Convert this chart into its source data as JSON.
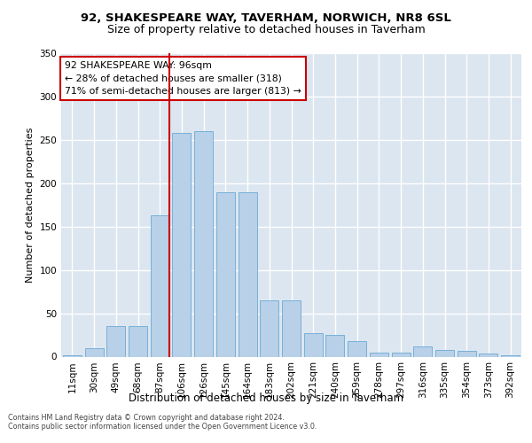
{
  "title1": "92, SHAKESPEARE WAY, TAVERHAM, NORWICH, NR8 6SL",
  "title2": "Size of property relative to detached houses in Taverham",
  "xlabel": "Distribution of detached houses by size in Taverham",
  "ylabel": "Number of detached properties",
  "categories": [
    "11sqm",
    "30sqm",
    "49sqm",
    "68sqm",
    "87sqm",
    "106sqm",
    "126sqm",
    "145sqm",
    "164sqm",
    "183sqm",
    "202sqm",
    "221sqm",
    "240sqm",
    "259sqm",
    "278sqm",
    "297sqm",
    "316sqm",
    "335sqm",
    "354sqm",
    "373sqm",
    "392sqm"
  ],
  "values": [
    2,
    10,
    35,
    35,
    163,
    258,
    260,
    190,
    190,
    65,
    65,
    27,
    25,
    18,
    5,
    5,
    12,
    8,
    7,
    4,
    2
  ],
  "bar_color": "#b8d0e8",
  "bar_edge_color": "#6aaad4",
  "vline_color": "#cc0000",
  "annotation_line1": "92 SHAKESPEARE WAY: 96sqm",
  "annotation_line2": "← 28% of detached houses are smaller (318)",
  "annotation_line3": "71% of semi-detached houses are larger (813) →",
  "footer1": "Contains HM Land Registry data © Crown copyright and database right 2024.",
  "footer2": "Contains public sector information licensed under the Open Government Licence v3.0.",
  "background_color": "#dce6f0",
  "ylim_max": 350
}
